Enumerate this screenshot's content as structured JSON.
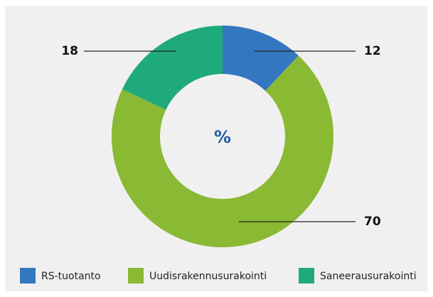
{
  "chart_data": {
    "type": "pie",
    "center_label": "%",
    "categories": [
      "RS-tuotanto",
      "Uudisrakennusurakointi",
      "Saneerausurakointi"
    ],
    "values": [
      12,
      70,
      18
    ],
    "colors": [
      "#3377c0",
      "#8ab934",
      "#1faa7c"
    ],
    "legend": "bottom"
  }
}
